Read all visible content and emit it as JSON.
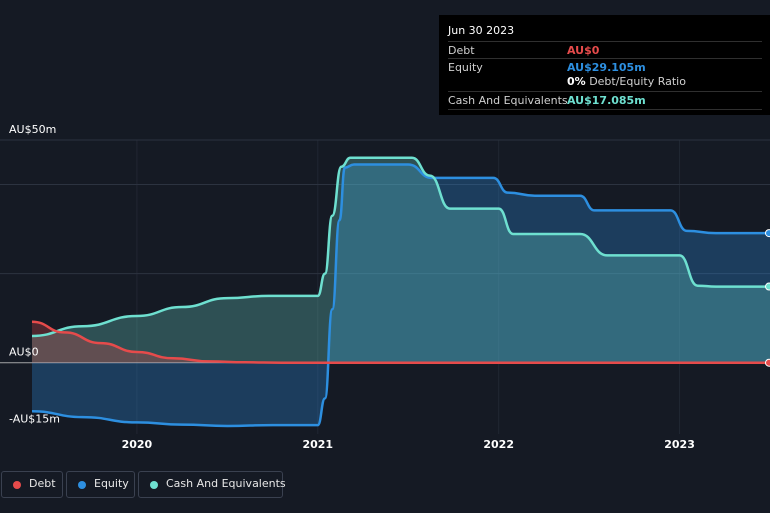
{
  "colors": {
    "background": "#151a24",
    "debt": "#e64b4b",
    "equity": "#2d8fe0",
    "cash": "#6ee0d0",
    "grid": "#2c3340",
    "zero_line": "#c8c8c8"
  },
  "tooltip": {
    "date": "Jun 30 2023",
    "rows": [
      {
        "label": "Debt",
        "value": "AU$0",
        "color": "#e64b4b"
      },
      {
        "label": "Equity",
        "value": "AU$29.105m",
        "color": "#2d8fe0"
      },
      {
        "label": "Cash And Equivalents",
        "value": "AU$17.085m",
        "color": "#6ee0d0"
      }
    ],
    "ratio_value": "0%",
    "ratio_label": "Debt/Equity Ratio"
  },
  "legend": [
    {
      "label": "Debt",
      "color": "#e64b4b"
    },
    {
      "label": "Equity",
      "color": "#2d8fe0"
    },
    {
      "label": "Cash And Equivalents",
      "color": "#6ee0d0"
    }
  ],
  "chart_data": {
    "type": "area",
    "xlim": [
      2019.42,
      2023.5
    ],
    "ylim": [
      -16,
      50
    ],
    "y_tick_labels": [
      {
        "value": 50,
        "label": "AU$50m"
      },
      {
        "value": 0,
        "label": "AU$0"
      },
      {
        "value": -15,
        "label": "-AU$15m"
      }
    ],
    "x_tick_labels": [
      {
        "value": 2020,
        "label": "2020"
      },
      {
        "value": 2021,
        "label": "2021"
      },
      {
        "value": 2022,
        "label": "2022"
      },
      {
        "value": 2023,
        "label": "2023"
      }
    ],
    "grid": true,
    "legend_position": "bottom-left",
    "series": [
      {
        "name": "Debt",
        "x": [
          2019.42,
          2019.6,
          2019.8,
          2020.0,
          2020.2,
          2020.4,
          2020.6,
          2020.8,
          2021.0,
          2021.5,
          2022.0,
          2022.5,
          2023.0,
          2023.5
        ],
        "values": [
          9.2,
          6.8,
          4.4,
          2.4,
          1.0,
          0.3,
          0.1,
          0.0,
          0.0,
          0.0,
          0.0,
          0.0,
          0.0,
          0.0
        ]
      },
      {
        "name": "Equity",
        "x": [
          2019.42,
          2019.7,
          2020.0,
          2020.25,
          2020.5,
          2020.75,
          2021.0,
          2021.04,
          2021.08,
          2021.12,
          2021.15,
          2021.2,
          2021.3,
          2021.5,
          2021.63,
          2021.75,
          2021.97,
          2022.05,
          2022.2,
          2022.45,
          2022.53,
          2022.7,
          2022.95,
          2023.04,
          2023.2,
          2023.5
        ],
        "values": [
          -10.9,
          -12.2,
          -13.4,
          -13.9,
          -14.2,
          -14.0,
          -14.0,
          -8.0,
          12.0,
          32.0,
          43.8,
          44.5,
          44.5,
          44.5,
          41.5,
          41.5,
          41.5,
          38.2,
          37.5,
          37.5,
          34.2,
          34.2,
          34.2,
          29.6,
          29.1,
          29.1
        ]
      },
      {
        "name": "Cash And Equivalents",
        "x": [
          2019.42,
          2019.7,
          2020.0,
          2020.25,
          2020.5,
          2020.73,
          2021.0,
          2021.04,
          2021.08,
          2021.13,
          2021.18,
          2021.22,
          2021.3,
          2021.52,
          2021.62,
          2021.73,
          2022.0,
          2022.08,
          2022.2,
          2022.45,
          2022.6,
          2022.75,
          2023.0,
          2023.1,
          2023.2,
          2023.5
        ],
        "values": [
          6.0,
          8.2,
          10.5,
          12.5,
          14.5,
          15.0,
          15.0,
          20.0,
          33.0,
          44.0,
          46.0,
          46.0,
          46.0,
          46.0,
          42.0,
          34.6,
          34.6,
          28.9,
          28.9,
          28.9,
          24.1,
          24.1,
          24.1,
          17.3,
          17.1,
          17.1
        ]
      }
    ]
  }
}
